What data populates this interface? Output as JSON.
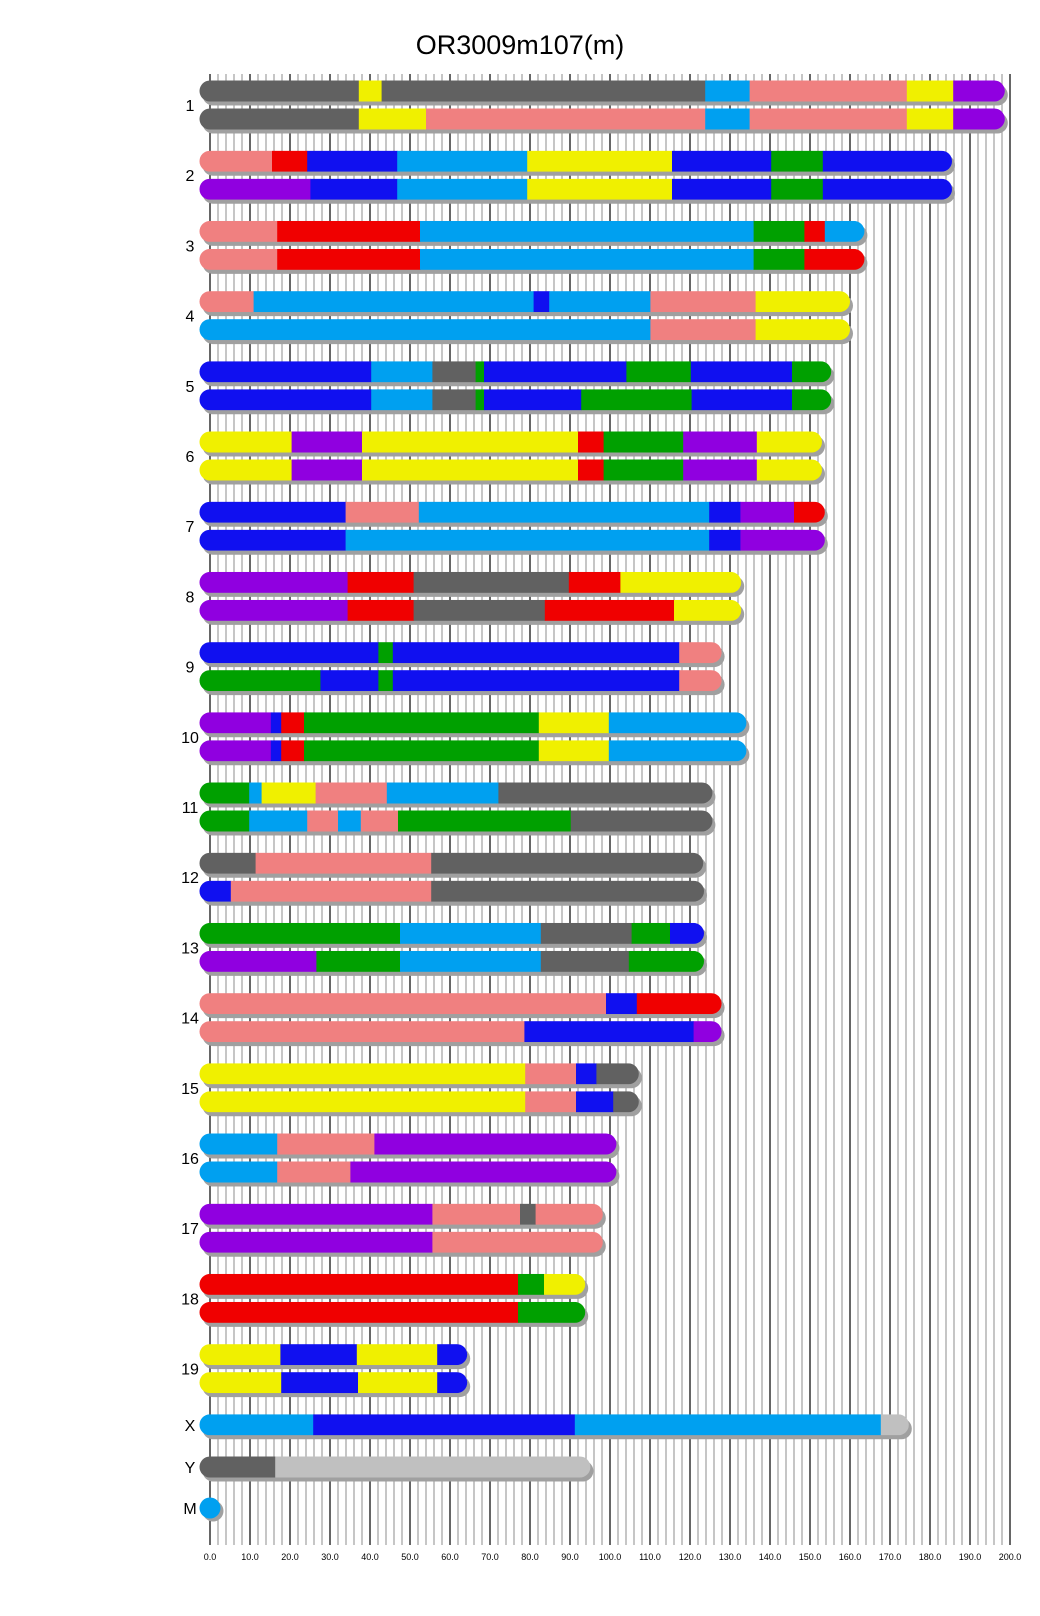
{
  "chart_data": {
    "type": "chromosome-painting",
    "title": "OR3009m107(m)",
    "xlim": [
      0,
      200
    ],
    "x_ticks": [
      "0.0",
      "10.0",
      "20.0",
      "30.0",
      "40.0",
      "50.0",
      "60.0",
      "70.0",
      "80.0",
      "90.0",
      "100.0",
      "110.0",
      "120.0",
      "130.0",
      "140.0",
      "150.0",
      "160.0",
      "170.0",
      "180.0",
      "190.0",
      "200.0"
    ],
    "minor_grid_step": 2,
    "major_grid_step": 10,
    "colors": {
      "g": "#616161",
      "y": "#f0f000",
      "p": "#f08080",
      "c": "#00a0f0",
      "b": "#1010f0",
      "r": "#f00000",
      "G": "#00a000",
      "u": "#9000e0",
      "l": "#c0c0c0"
    },
    "chromosomes": [
      {
        "name": "1",
        "haplotypes": [
          [
            [
              "g",
              37.2
            ],
            [
              "y",
              42.9
            ],
            [
              "g",
              123.8
            ],
            [
              "c",
              134.9
            ],
            [
              "p",
              174.2
            ],
            [
              "y",
              185.8
            ],
            [
              "u",
              198.7
            ]
          ],
          [
            [
              "g",
              37.2
            ],
            [
              "y",
              54
            ],
            [
              "p",
              123.8
            ],
            [
              "c",
              134.9
            ],
            [
              "p",
              174.2
            ],
            [
              "y",
              185.8
            ],
            [
              "u",
              198.7
            ]
          ]
        ]
      },
      {
        "name": "2",
        "haplotypes": [
          [
            [
              "p",
              15.5
            ],
            [
              "r",
              24.3
            ],
            [
              "b",
              46.8
            ],
            [
              "c",
              79.3
            ],
            [
              "y",
              115.5
            ],
            [
              "b",
              140.3
            ],
            [
              "G",
              153.2
            ],
            [
              "b",
              185.5
            ]
          ],
          [
            [
              "u",
              25.1
            ],
            [
              "b",
              46.8
            ],
            [
              "c",
              79.3
            ],
            [
              "y",
              115.5
            ],
            [
              "b",
              140.3
            ],
            [
              "G",
              153.2
            ],
            [
              "b",
              185.5
            ]
          ]
        ]
      },
      {
        "name": "3",
        "haplotypes": [
          [
            [
              "p",
              16.8
            ],
            [
              "r",
              52.5
            ],
            [
              "c",
              135.9
            ],
            [
              "G",
              148.6
            ],
            [
              "r",
              153.7
            ],
            [
              "c",
              163.6
            ]
          ],
          [
            [
              "p",
              16.8
            ],
            [
              "r",
              52.5
            ],
            [
              "c",
              135.9
            ],
            [
              "G",
              148.6
            ],
            [
              "r",
              163.6
            ]
          ]
        ]
      },
      {
        "name": "4",
        "haplotypes": [
          [
            [
              "p",
              10.9
            ],
            [
              "c",
              80.9
            ],
            [
              "b",
              84.8
            ],
            [
              "c",
              110.1
            ],
            [
              "p",
              136.4
            ],
            [
              "y",
              160
            ]
          ],
          [
            [
              "c",
              110.1
            ],
            [
              "p",
              136.4
            ],
            [
              "y",
              160
            ]
          ]
        ]
      },
      {
        "name": "5",
        "haplotypes": [
          [
            [
              "b",
              40.3
            ],
            [
              "c",
              55.6
            ],
            [
              "g",
              66.4
            ],
            [
              "G",
              68.5
            ],
            [
              "b",
              104.1
            ],
            [
              "G",
              120.2
            ],
            [
              "b",
              145.5
            ],
            [
              "G",
              155.3
            ]
          ],
          [
            [
              "b",
              40.3
            ],
            [
              "c",
              55.6
            ],
            [
              "g",
              66.4
            ],
            [
              "G",
              68.5
            ],
            [
              "b",
              92.8
            ],
            [
              "G",
              120.4
            ],
            [
              "b",
              145.5
            ],
            [
              "G",
              155.3
            ]
          ]
        ]
      },
      {
        "name": "6",
        "haplotypes": [
          [
            [
              "y",
              20.4
            ],
            [
              "u",
              38
            ],
            [
              "y",
              92
            ],
            [
              "r",
              98.4
            ],
            [
              "G",
              118.3
            ],
            [
              "u",
              136.7
            ],
            [
              "y",
              153
            ]
          ],
          [
            [
              "y",
              20.4
            ],
            [
              "u",
              38
            ],
            [
              "y",
              92
            ],
            [
              "r",
              98.4
            ],
            [
              "G",
              118.3
            ],
            [
              "u",
              136.7
            ],
            [
              "y",
              153
            ]
          ]
        ]
      },
      {
        "name": "7",
        "haplotypes": [
          [
            [
              "b",
              33.9
            ],
            [
              "p",
              52.2
            ],
            [
              "c",
              124.8
            ],
            [
              "b",
              132.6
            ],
            [
              "u",
              146
            ],
            [
              "r",
              153.7
            ]
          ],
          [
            [
              "b",
              33.9
            ],
            [
              "c",
              124.8
            ],
            [
              "b",
              132.6
            ],
            [
              "u",
              153.7
            ]
          ]
        ]
      },
      {
        "name": "8",
        "haplotypes": [
          [
            [
              "u",
              34.4
            ],
            [
              "r",
              50.9
            ],
            [
              "g",
              89.7
            ],
            [
              "r",
              102.6
            ],
            [
              "y",
              132.8
            ]
          ],
          [
            [
              "u",
              34.4
            ],
            [
              "r",
              50.9
            ],
            [
              "g",
              83.7
            ],
            [
              "r",
              116
            ],
            [
              "y",
              132.8
            ]
          ]
        ]
      },
      {
        "name": "9",
        "haplotypes": [
          [
            [
              "b",
              42.1
            ],
            [
              "G",
              45.7
            ],
            [
              "b",
              117.3
            ],
            [
              "p",
              127.9
            ]
          ],
          [
            [
              "G",
              27.6
            ],
            [
              "b",
              42.1
            ],
            [
              "G",
              45.7
            ],
            [
              "b",
              117.3
            ],
            [
              "p",
              127.9
            ]
          ]
        ]
      },
      {
        "name": "10",
        "haplotypes": [
          [
            [
              "u",
              15.2
            ],
            [
              "b",
              17.8
            ],
            [
              "r",
              23.5
            ],
            [
              "G",
              82.2
            ],
            [
              "y",
              99.7
            ],
            [
              "c",
              134.1
            ]
          ],
          [
            [
              "u",
              15.2
            ],
            [
              "b",
              17.8
            ],
            [
              "r",
              23.5
            ],
            [
              "G",
              82.2
            ],
            [
              "y",
              99.7
            ],
            [
              "c",
              134.1
            ]
          ]
        ]
      },
      {
        "name": "11",
        "haplotypes": [
          [
            [
              "G",
              9.8
            ],
            [
              "c",
              12.9
            ],
            [
              "y",
              26.4
            ],
            [
              "p",
              44.2
            ],
            [
              "c",
              72.1
            ],
            [
              "g",
              125.6
            ]
          ],
          [
            [
              "G",
              9.8
            ],
            [
              "c",
              24.3
            ],
            [
              "p",
              32
            ],
            [
              "c",
              37.7
            ],
            [
              "p",
              47
            ],
            [
              "G",
              90.2
            ],
            [
              "g",
              125.6
            ]
          ]
        ]
      },
      {
        "name": "12",
        "haplotypes": [
          [
            [
              "g",
              11.4
            ],
            [
              "p",
              55.3
            ],
            [
              "g",
              123.3
            ]
          ],
          [
            [
              "b",
              5.2
            ],
            [
              "p",
              55.3
            ],
            [
              "g",
              123.5
            ]
          ]
        ]
      },
      {
        "name": "13",
        "haplotypes": [
          [
            [
              "G",
              47.5
            ],
            [
              "c",
              82.7
            ],
            [
              "g",
              105.4
            ],
            [
              "G",
              115
            ],
            [
              "b",
              123.5
            ]
          ],
          [
            [
              "u",
              26.6
            ],
            [
              "G",
              47.5
            ],
            [
              "c",
              82.7
            ],
            [
              "g",
              104.7
            ],
            [
              "G",
              123.5
            ]
          ]
        ]
      },
      {
        "name": "14",
        "haplotypes": [
          [
            [
              "p",
              99
            ],
            [
              "b",
              106.7
            ],
            [
              "r",
              127.9
            ]
          ],
          [
            [
              "p",
              78.6
            ],
            [
              "b",
              120.9
            ],
            [
              "u",
              127.9
            ]
          ]
        ]
      },
      {
        "name": "15",
        "haplotypes": [
          [
            [
              "y",
              78.8
            ],
            [
              "p",
              91.5
            ],
            [
              "b",
              96.6
            ],
            [
              "g",
              107.2
            ]
          ],
          [
            [
              "y",
              78.8
            ],
            [
              "p",
              91.5
            ],
            [
              "b",
              100.8
            ],
            [
              "g",
              107.2
            ]
          ]
        ]
      },
      {
        "name": "16",
        "haplotypes": [
          [
            [
              "c",
              16.8
            ],
            [
              "p",
              41.1
            ],
            [
              "u",
              101.6
            ]
          ],
          [
            [
              "c",
              16.8
            ],
            [
              "p",
              35.1
            ],
            [
              "u",
              101.6
            ]
          ]
        ]
      },
      {
        "name": "17",
        "haplotypes": [
          [
            [
              "u",
              55.6
            ],
            [
              "p",
              77.5
            ],
            [
              "g",
              81.4
            ],
            [
              "p",
              98.2
            ]
          ],
          [
            [
              "u",
              55.6
            ],
            [
              "p",
              98.2
            ]
          ]
        ]
      },
      {
        "name": "18",
        "haplotypes": [
          [
            [
              "r",
              77
            ],
            [
              "G",
              83.5
            ],
            [
              "y",
              93.8
            ]
          ],
          [
            [
              "r",
              77
            ],
            [
              "G",
              93.8
            ]
          ]
        ]
      },
      {
        "name": "19",
        "haplotypes": [
          [
            [
              "y",
              17.6
            ],
            [
              "b",
              36.7
            ],
            [
              "y",
              56.8
            ],
            [
              "b",
              64.3
            ]
          ],
          [
            [
              "y",
              17.8
            ],
            [
              "b",
              37
            ],
            [
              "y",
              56.8
            ],
            [
              "b",
              64.3
            ]
          ]
        ]
      },
      {
        "name": "X",
        "haplotypes": [
          [
            [
              "c",
              25.8
            ],
            [
              "b",
              91.2
            ],
            [
              "c",
              167.7
            ],
            [
              "l",
              174.7
            ]
          ]
        ]
      },
      {
        "name": "Y",
        "haplotypes": [
          [
            [
              "g",
              16.3
            ],
            [
              "l",
              95.1
            ]
          ]
        ]
      },
      {
        "name": "M",
        "haplotypes": [
          [
            [
              "c",
              0.5
            ]
          ]
        ]
      }
    ]
  }
}
